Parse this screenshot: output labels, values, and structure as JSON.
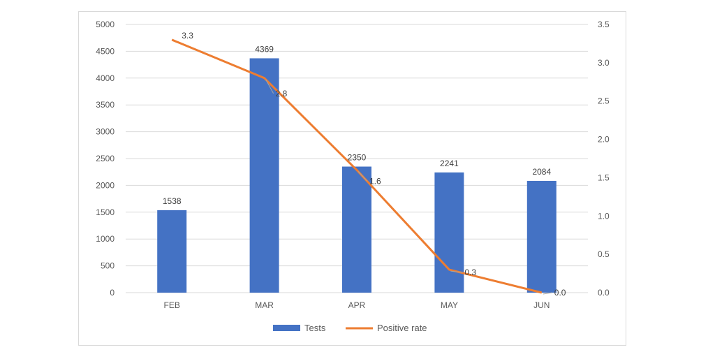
{
  "chart_data": {
    "type": "bar",
    "categories": [
      "FEB",
      "MAR",
      "APR",
      "MAY",
      "JUN"
    ],
    "series": [
      {
        "name": "Tests",
        "type": "bar",
        "axis": "left",
        "color": "#4472C4",
        "values": [
          1538,
          4369,
          2350,
          2241,
          2084
        ],
        "labels": [
          "1538",
          "4369",
          "2350",
          "2241",
          "2084"
        ]
      },
      {
        "name": "Positive rate",
        "type": "line",
        "axis": "right",
        "color": "#ED7D31",
        "values": [
          3.3,
          2.8,
          1.6,
          0.3,
          0.0
        ],
        "labels": [
          "3.3",
          "2.8",
          "1.6",
          "0.3",
          "0.0"
        ]
      }
    ],
    "y_left": {
      "min": 0,
      "max": 5000,
      "ticks": [
        "0",
        "500",
        "1000",
        "1500",
        "2000",
        "2500",
        "3000",
        "3500",
        "4000",
        "4500",
        "5000"
      ]
    },
    "y_right": {
      "min": 0,
      "max": 3.5,
      "ticks": [
        "0.0",
        "0.5",
        "1.0",
        "1.5",
        "2.0",
        "2.5",
        "3.0",
        "3.5"
      ]
    },
    "grid": true,
    "legend": "bottom"
  }
}
